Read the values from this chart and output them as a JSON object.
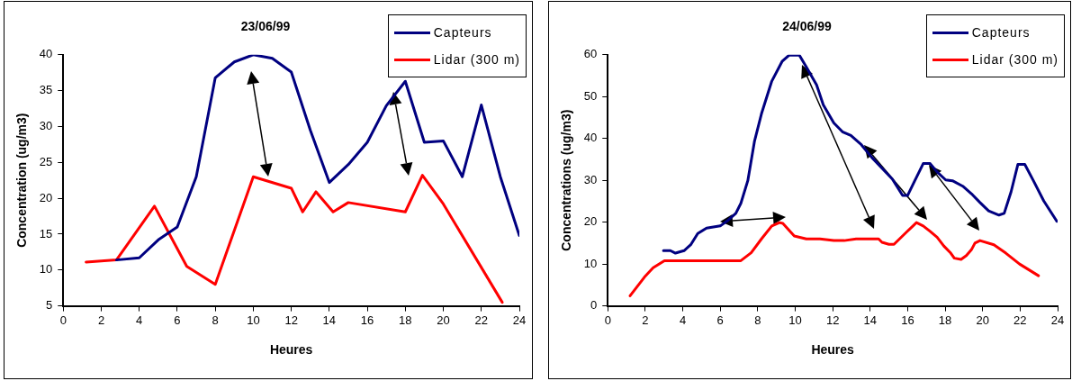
{
  "chart_data": [
    {
      "type": "line",
      "title": "23/06/99",
      "xlabel": "Heures",
      "ylabel": "Concentration (ug/m3)",
      "xlim": [
        0,
        24
      ],
      "xticks": [
        0,
        2,
        4,
        6,
        8,
        10,
        12,
        14,
        16,
        18,
        20,
        22,
        24
      ],
      "ylim": [
        5,
        40
      ],
      "yticks": [
        5,
        10,
        15,
        20,
        25,
        30,
        35,
        40
      ],
      "grid": false,
      "legend": "top right",
      "marker": "none",
      "line_style": "solid",
      "series": [
        {
          "name": "Capteurs",
          "color": "#000080",
          "x": [
            2.8,
            4,
            5,
            6,
            7,
            8,
            9,
            10,
            11,
            12,
            13,
            14,
            15,
            16,
            17,
            18,
            19,
            20,
            21,
            22,
            23,
            24
          ],
          "values": [
            11.4,
            11.7,
            14.2,
            16,
            23,
            36.8,
            39,
            40,
            39.5,
            37.6,
            29.5,
            22.2,
            24.7,
            27.8,
            32.9,
            36.3,
            27.8,
            28,
            23,
            33,
            23,
            14.8
          ]
        },
        {
          "name": "Lidar (300 m)",
          "color": "#ff0000",
          "x": [
            1.2,
            2.8,
            4.8,
            6.5,
            8,
            10,
            12,
            12.6,
            13.3,
            14.2,
            15,
            18,
            18.9,
            20,
            23.1
          ],
          "values": [
            11.1,
            11.4,
            18.9,
            10.5,
            8,
            23,
            21.4,
            18.1,
            20.9,
            18.1,
            19.4,
            18.1,
            23.2,
            19.2,
            5.5
          ]
        }
      ]
    },
    {
      "type": "line",
      "title": "24/06/99",
      "xlabel": "Heures",
      "ylabel": "Concentrations (ug/m3)",
      "xlim": [
        0,
        24
      ],
      "xticks": [
        0,
        2,
        4,
        6,
        8,
        10,
        12,
        14,
        16,
        18,
        20,
        22,
        24
      ],
      "ylim": [
        0,
        60
      ],
      "yticks": [
        0,
        10,
        20,
        30,
        40,
        50,
        60
      ],
      "grid": false,
      "legend": "top right",
      "marker": "none",
      "line_style": "solid",
      "series": [
        {
          "name": "Capteurs",
          "color": "#000080",
          "x": [
            2.97,
            3.34,
            3.61,
            4.07,
            4.44,
            4.8,
            5.27,
            6.0,
            6.37,
            6.83,
            7.1,
            7.47,
            7.83,
            8.2,
            8.75,
            9.3,
            9.67,
            10.22,
            10.59,
            11.14,
            11.5,
            12.06,
            12.52,
            12.97,
            13.53,
            14.08,
            14.63,
            15.18,
            15.73,
            16.0,
            16.38,
            16.83,
            17.2,
            17.57,
            18.03,
            18.39,
            18.94,
            19.4,
            19.86,
            20.32,
            20.87,
            21.15,
            21.52,
            21.88,
            22.25,
            22.71,
            23.26,
            23.96
          ],
          "values": [
            13.2,
            13.2,
            12.6,
            13.2,
            14.7,
            17.3,
            18.6,
            19.1,
            20.3,
            22.1,
            24.5,
            29.9,
            39.4,
            45.9,
            53.7,
            58.4,
            59.9,
            59.9,
            57.1,
            52.8,
            48,
            43.7,
            41.6,
            40.7,
            38.5,
            35.5,
            32.9,
            30.3,
            26.4,
            26.4,
            29.9,
            34,
            34,
            32,
            30.1,
            29.9,
            28.6,
            26.8,
            24.7,
            22.7,
            21.7,
            22.1,
            27.3,
            33.8,
            33.8,
            29.9,
            25.1,
            20.2
          ]
        },
        {
          "name": "Lidar (300 m)",
          "color": "#ff0000",
          "x": [
            1.19,
            1.96,
            2.42,
            3.02,
            7.1,
            7.65,
            8.2,
            8.75,
            9.16,
            9.34,
            9.95,
            10.59,
            11.32,
            12.06,
            12.61,
            13.25,
            14.45,
            14.63,
            15.0,
            15.27,
            15.91,
            16.47,
            16.83,
            17.2,
            17.57,
            17.93,
            18.3,
            18.49,
            18.85,
            19.13,
            19.4,
            19.59,
            19.86,
            20.6,
            21.24,
            21.97,
            22.98
          ],
          "values": [
            2.4,
            6.9,
            9.1,
            10.8,
            10.8,
            12.7,
            16,
            19.1,
            19.9,
            19.7,
            16.7,
            16,
            16,
            15.6,
            15.6,
            16,
            16,
            15.2,
            14.7,
            14.7,
            17.5,
            19.9,
            19.1,
            17.8,
            16.4,
            14.3,
            12.6,
            11.4,
            11.1,
            12,
            13.4,
            15,
            15.6,
            14.6,
            12.6,
            10,
            7.2
          ]
        }
      ]
    }
  ]
}
